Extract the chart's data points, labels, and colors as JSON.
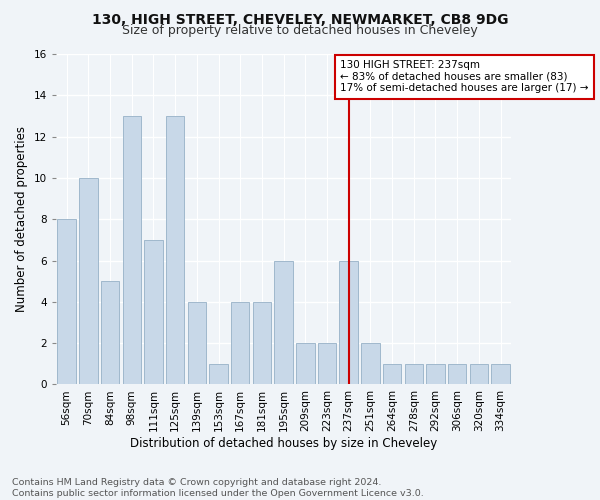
{
  "title1": "130, HIGH STREET, CHEVELEY, NEWMARKET, CB8 9DG",
  "title2": "Size of property relative to detached houses in Cheveley",
  "xlabel": "Distribution of detached houses by size in Cheveley",
  "ylabel": "Number of detached properties",
  "footer": "Contains HM Land Registry data © Crown copyright and database right 2024.\nContains public sector information licensed under the Open Government Licence v3.0.",
  "categories": [
    "56sqm",
    "70sqm",
    "84sqm",
    "98sqm",
    "111sqm",
    "125sqm",
    "139sqm",
    "153sqm",
    "167sqm",
    "181sqm",
    "195sqm",
    "209sqm",
    "223sqm",
    "237sqm",
    "251sqm",
    "264sqm",
    "278sqm",
    "292sqm",
    "306sqm",
    "320sqm",
    "334sqm"
  ],
  "values": [
    8,
    10,
    5,
    13,
    7,
    13,
    4,
    1,
    4,
    4,
    6,
    2,
    2,
    6,
    2,
    1,
    1,
    1,
    1,
    1,
    1
  ],
  "bar_color": "#c8d8e8",
  "bar_edge_color": "#a0b8cc",
  "highlight_index": 13,
  "highlight_line_color": "#cc0000",
  "annotation_text": "130 HIGH STREET: 237sqm\n← 83% of detached houses are smaller (83)\n17% of semi-detached houses are larger (17) →",
  "annotation_box_color": "#ffffff",
  "annotation_box_edge": "#cc0000",
  "ylim": [
    0,
    16
  ],
  "yticks": [
    0,
    2,
    4,
    6,
    8,
    10,
    12,
    14,
    16
  ],
  "bg_color": "#f0f4f8",
  "grid_color": "#ffffff",
  "title_fontsize": 10,
  "subtitle_fontsize": 9,
  "axis_fontsize": 8.5,
  "tick_fontsize": 7.5,
  "annot_fontsize": 7.5,
  "footer_fontsize": 6.8
}
